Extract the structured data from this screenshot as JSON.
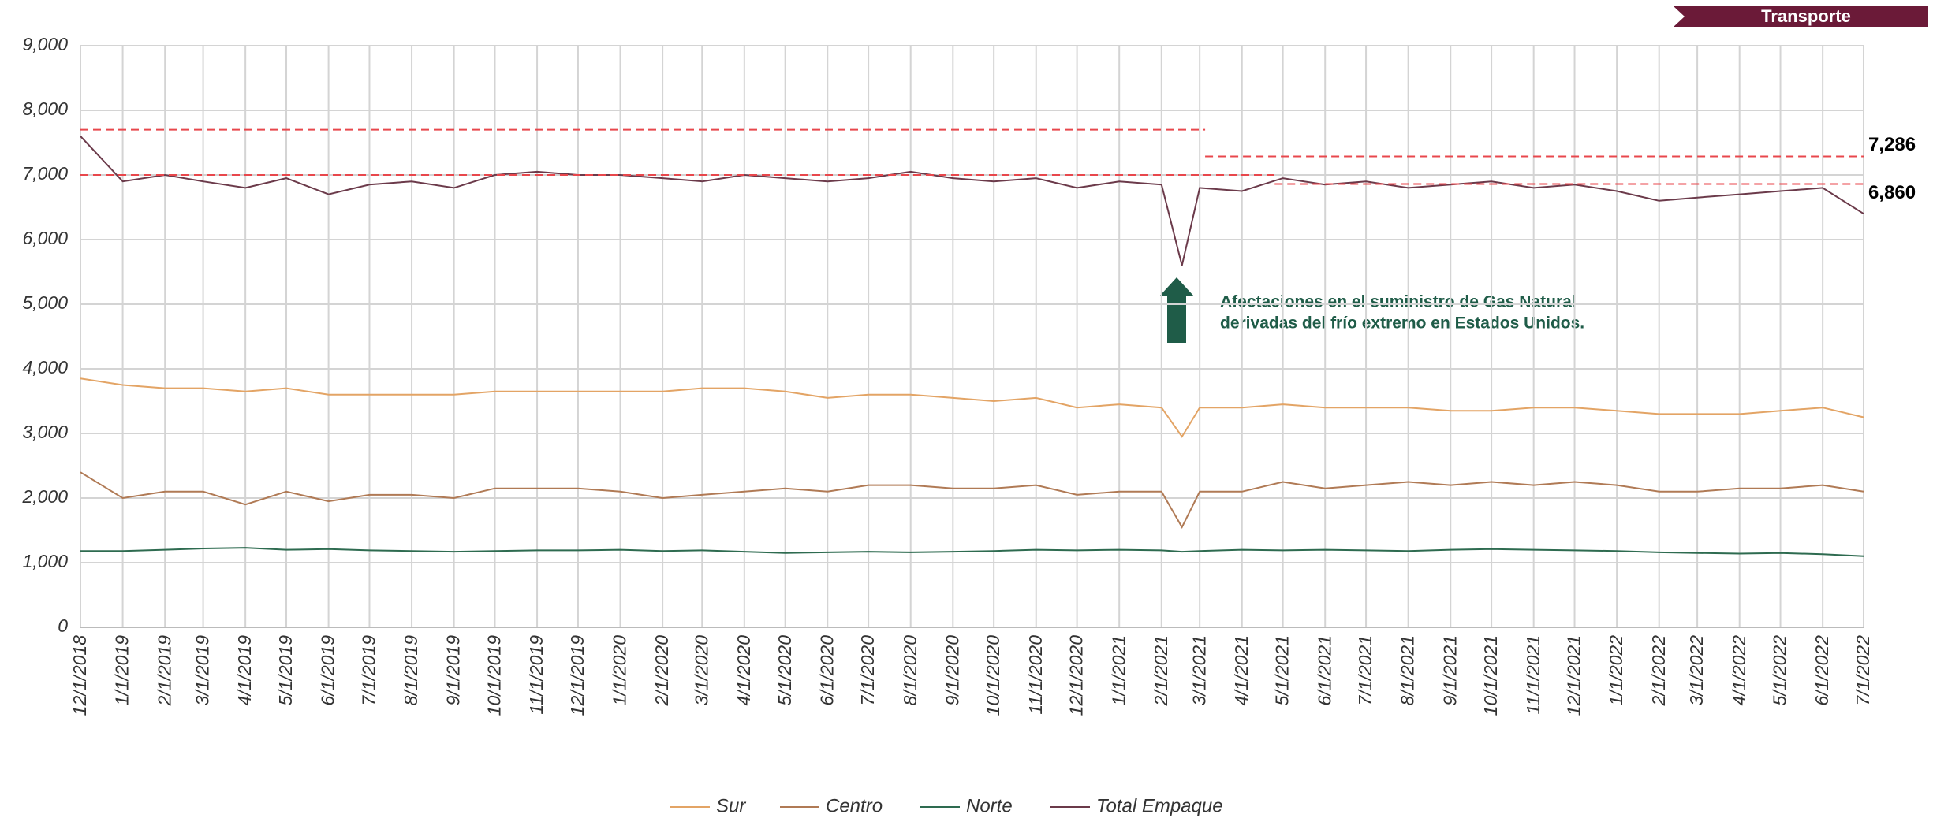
{
  "chart_data": {
    "type": "line",
    "tag": "Transporte",
    "x": [
      "12/1/2018",
      "1/1/2019",
      "2/1/2019",
      "3/1/2019",
      "4/1/2019",
      "5/1/2019",
      "6/1/2019",
      "7/1/2019",
      "8/1/2019",
      "9/1/2019",
      "10/1/2019",
      "11/1/2019",
      "12/1/2019",
      "1/1/2020",
      "2/1/2020",
      "3/1/2020",
      "4/1/2020",
      "5/1/2020",
      "6/1/2020",
      "7/1/2020",
      "8/1/2020",
      "9/1/2020",
      "10/1/2020",
      "11/1/2020",
      "12/1/2020",
      "1/1/2021",
      "2/1/2021",
      "2/16/2021",
      "3/1/2021",
      "4/1/2021",
      "5/1/2021",
      "6/1/2021",
      "7/1/2021",
      "8/1/2021",
      "9/1/2021",
      "10/1/2021",
      "11/1/2021",
      "12/1/2021",
      "1/1/2022",
      "2/1/2022",
      "3/1/2022",
      "4/1/2022",
      "5/1/2022",
      "6/1/2022",
      "7/1/2022"
    ],
    "xlim": [
      "12/1/2018",
      "7/1/2022"
    ],
    "xticks": [
      "12/1/2018",
      "1/1/2019",
      "2/1/2019",
      "3/1/2019",
      "4/1/2019",
      "5/1/2019",
      "6/1/2019",
      "7/1/2019",
      "8/1/2019",
      "9/1/2019",
      "10/1/2019",
      "11/1/2019",
      "12/1/2019",
      "1/1/2020",
      "2/1/2020",
      "3/1/2020",
      "4/1/2020",
      "5/1/2020",
      "6/1/2020",
      "7/1/2020",
      "8/1/2020",
      "9/1/2020",
      "10/1/2020",
      "11/1/2020",
      "12/1/2020",
      "1/1/2021",
      "2/1/2021",
      "3/1/2021",
      "4/1/2021",
      "5/1/2021",
      "6/1/2021",
      "7/1/2021",
      "8/1/2021",
      "9/1/2021",
      "10/1/2021",
      "11/1/2021",
      "12/1/2021",
      "1/1/2022",
      "2/1/2022",
      "3/1/2022",
      "4/1/2022",
      "5/1/2022",
      "6/1/2022",
      "7/1/2022"
    ],
    "ylim": [
      0,
      9000
    ],
    "yticks": [
      0,
      {
        "value": 1000,
        "label": "1,000"
      },
      {
        "value": 2000,
        "label": "2,000"
      },
      {
        "value": 3000,
        "label": "3,000"
      },
      {
        "value": 4000,
        "label": "4,000"
      },
      {
        "value": 5000,
        "label": "5,000"
      },
      {
        "value": 6000,
        "label": "6,000"
      },
      {
        "value": 7000,
        "label": "7,000"
      },
      {
        "value": 8000,
        "label": "8,000"
      },
      {
        "value": 9000,
        "label": "9,000"
      }
    ],
    "grid": true,
    "series": [
      {
        "name": "Sur",
        "color": "#e3a465",
        "values": [
          3850,
          3750,
          3700,
          3700,
          3650,
          3700,
          3600,
          3600,
          3600,
          3600,
          3650,
          3650,
          3650,
          3650,
          3650,
          3700,
          3700,
          3650,
          3550,
          3600,
          3600,
          3550,
          3500,
          3550,
          3400,
          3450,
          3400,
          2950,
          3400,
          3400,
          3450,
          3400,
          3400,
          3400,
          3350,
          3350,
          3400,
          3400,
          3350,
          3300,
          3300,
          3300,
          3350,
          3400,
          3250
        ]
      },
      {
        "name": "Centro",
        "color": "#b07a55",
        "values": [
          2400,
          2000,
          2100,
          2100,
          1900,
          2100,
          1950,
          2050,
          2050,
          2000,
          2150,
          2150,
          2150,
          2100,
          2000,
          2050,
          2100,
          2150,
          2100,
          2200,
          2200,
          2150,
          2150,
          2200,
          2050,
          2100,
          2100,
          1550,
          2100,
          2100,
          2250,
          2150,
          2200,
          2250,
          2200,
          2250,
          2200,
          2250,
          2200,
          2100,
          2100,
          2150,
          2150,
          2200,
          2100
        ]
      },
      {
        "name": "Norte",
        "color": "#2e6b50",
        "values": [
          1180,
          1180,
          1200,
          1220,
          1230,
          1200,
          1210,
          1190,
          1180,
          1170,
          1180,
          1190,
          1190,
          1200,
          1180,
          1190,
          1170,
          1150,
          1160,
          1170,
          1160,
          1170,
          1180,
          1200,
          1190,
          1200,
          1190,
          1170,
          1180,
          1200,
          1190,
          1200,
          1190,
          1180,
          1200,
          1210,
          1200,
          1190,
          1180,
          1160,
          1150,
          1140,
          1150,
          1130,
          1100
        ]
      },
      {
        "name": "Total Empaque",
        "color": "#6b3a4a",
        "values": [
          7600,
          6900,
          7000,
          6900,
          6800,
          6950,
          6700,
          6850,
          6900,
          6800,
          7000,
          7050,
          7000,
          7000,
          6950,
          6900,
          7000,
          6950,
          6900,
          6950,
          7050,
          6950,
          6900,
          6950,
          6800,
          6900,
          6850,
          5600,
          6800,
          6750,
          6950,
          6850,
          6900,
          6800,
          6850,
          6900,
          6800,
          6850,
          6750,
          6600,
          6650,
          6700,
          6750,
          6800,
          6400
        ]
      }
    ],
    "reference_lines": [
      {
        "value": 7700,
        "from": "12/1/2018",
        "to": "3/5/2021",
        "color": "#e8474c"
      },
      {
        "value": 7286,
        "label": "7,286",
        "from": "3/5/2021",
        "to": "7/1/2022",
        "color": "#e8474c"
      },
      {
        "value": 7000,
        "from": "12/1/2018",
        "to": "4/25/2021",
        "color": "#e8474c"
      },
      {
        "value": 6860,
        "label": "6,860",
        "from": "4/25/2021",
        "to": "7/1/2022",
        "color": "#e8474c"
      }
    ],
    "annotation": [
      "Afectaciones en el suministro de Gas Natural",
      "derivadas del frío extremo en Estados Unidos."
    ]
  }
}
